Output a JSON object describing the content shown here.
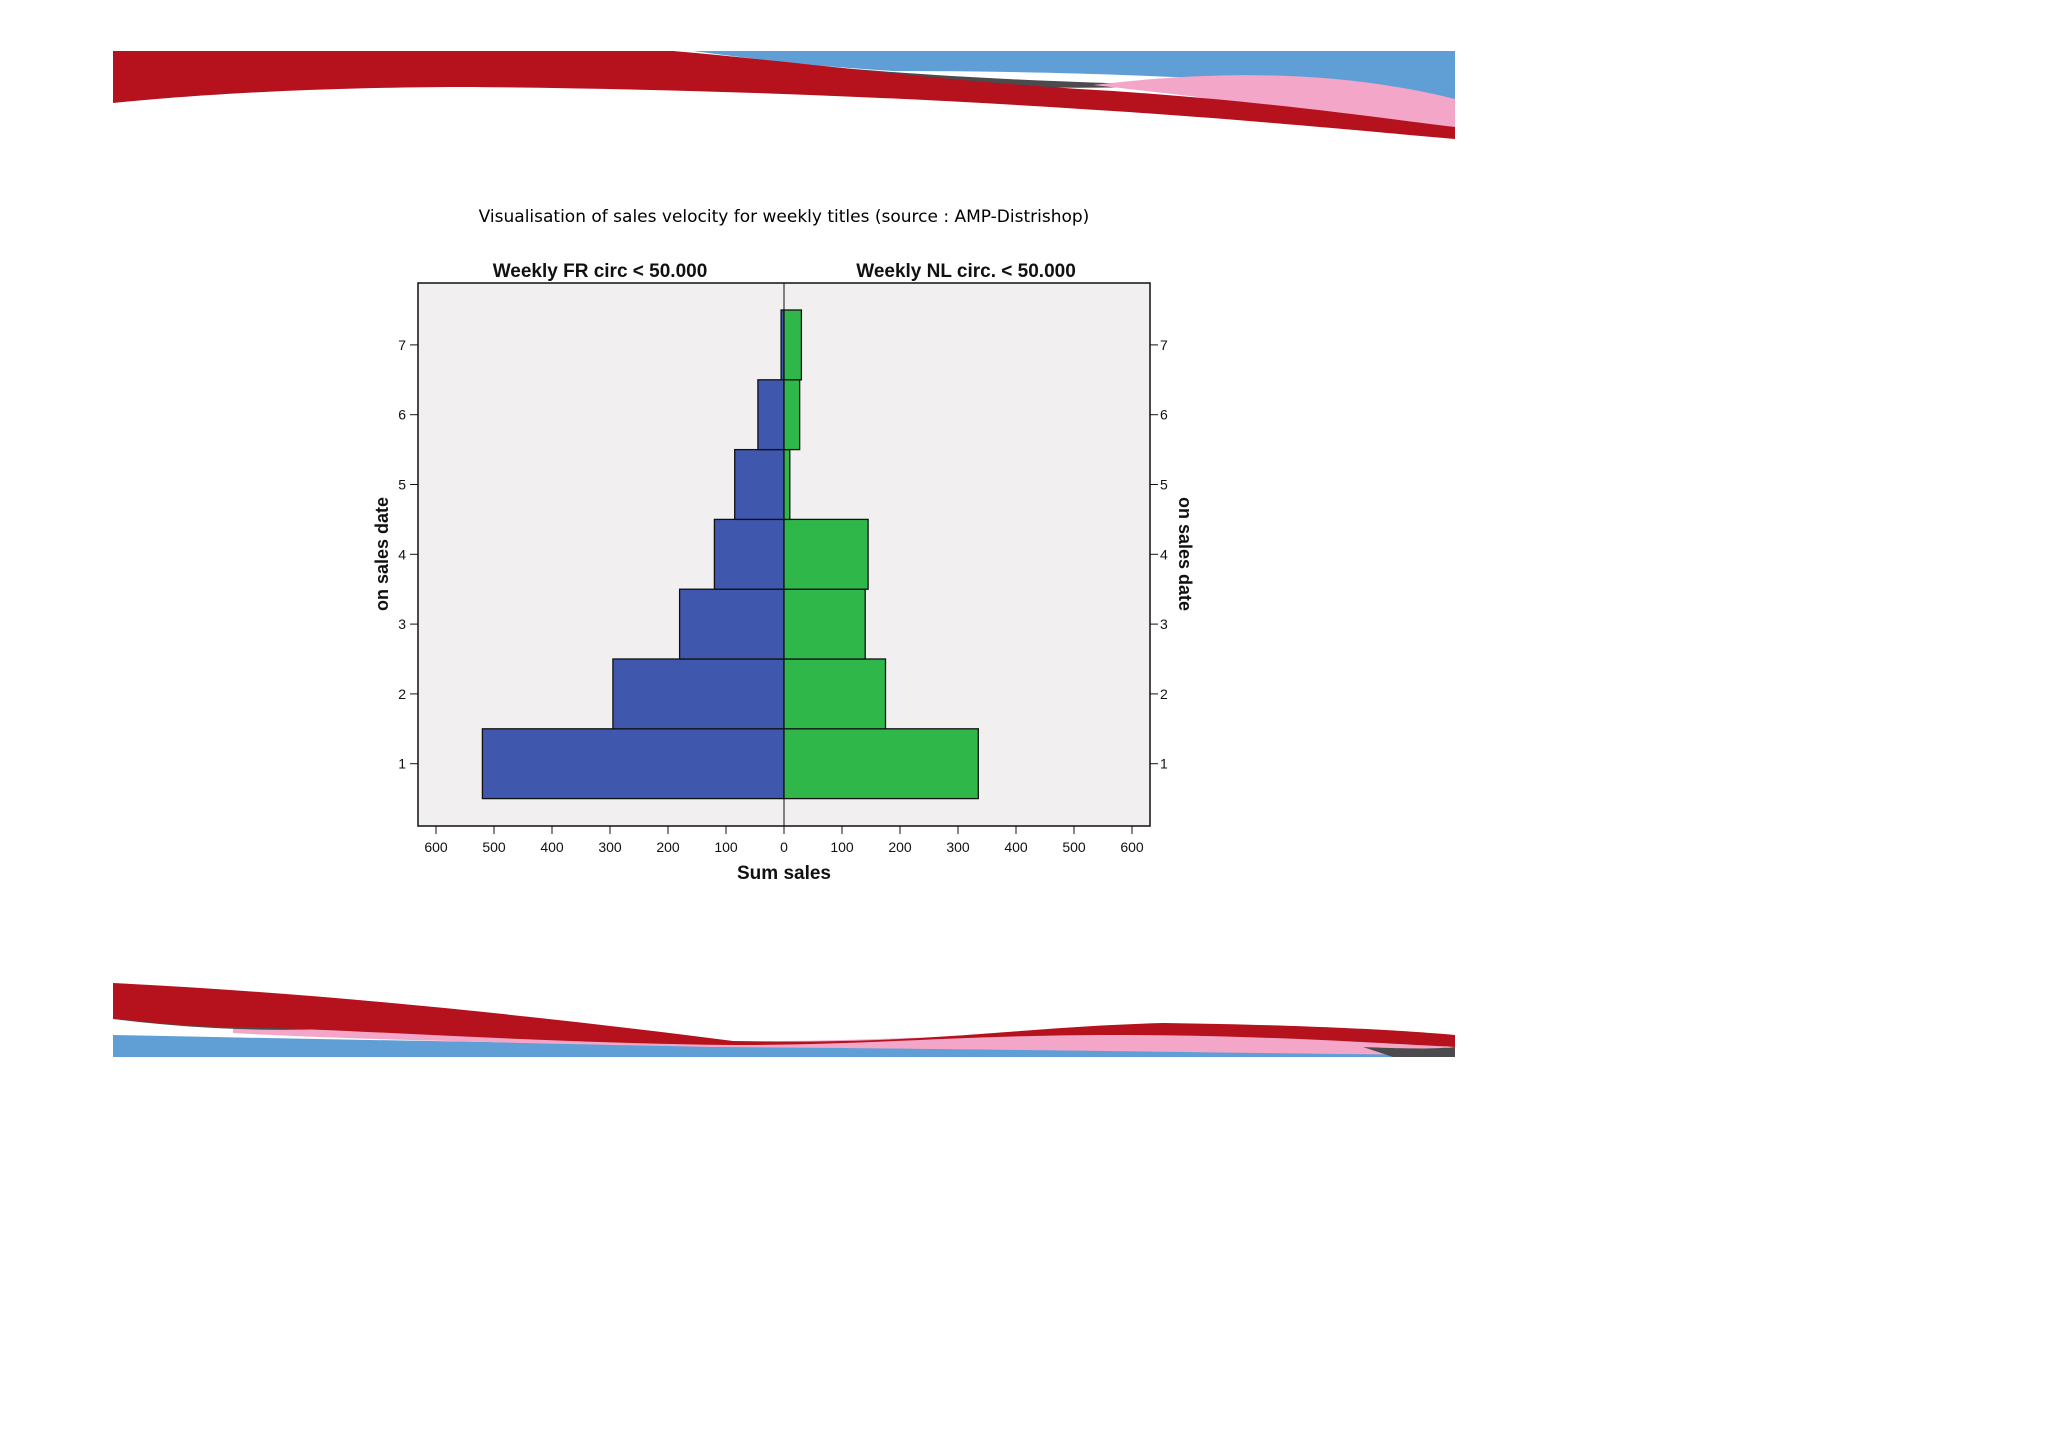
{
  "slide": {
    "title": "Visualisation of sales velocity for weekly titles (source : AMP-Distrishop)"
  },
  "colors": {
    "left_series": "#3f57ac",
    "right_series": "#2fb74a",
    "plot_background": "#f1eff0",
    "banner_red": "#b5121e",
    "banner_blue": "#5f9fd6",
    "banner_pink": "#f4a6c8",
    "banner_dark": "#4b4b4d"
  },
  "chart_data": {
    "type": "bar",
    "orientation": "horizontal",
    "subtype": "back-to-back pyramid",
    "categories": [
      "1",
      "2",
      "3",
      "4",
      "5",
      "6",
      "7"
    ],
    "series": [
      {
        "name": "Weekly FR circ < 50.000",
        "side": "left",
        "values": [
          520,
          295,
          180,
          120,
          85,
          45,
          5
        ]
      },
      {
        "name": "Weekly NL circ. < 50.000",
        "side": "right",
        "values": [
          335,
          175,
          140,
          145,
          10,
          27,
          30
        ]
      }
    ],
    "xlabel": "Sum sales",
    "ylabel": "on sales date",
    "xlim": [
      0,
      600
    ],
    "xticks": [
      "600",
      "500",
      "400",
      "300",
      "200",
      "100",
      "0",
      "100",
      "200",
      "300",
      "400",
      "500",
      "600"
    ],
    "yticks": [
      "1",
      "2",
      "3",
      "4",
      "5",
      "6",
      "7"
    ],
    "grid": false,
    "legend": "none"
  }
}
